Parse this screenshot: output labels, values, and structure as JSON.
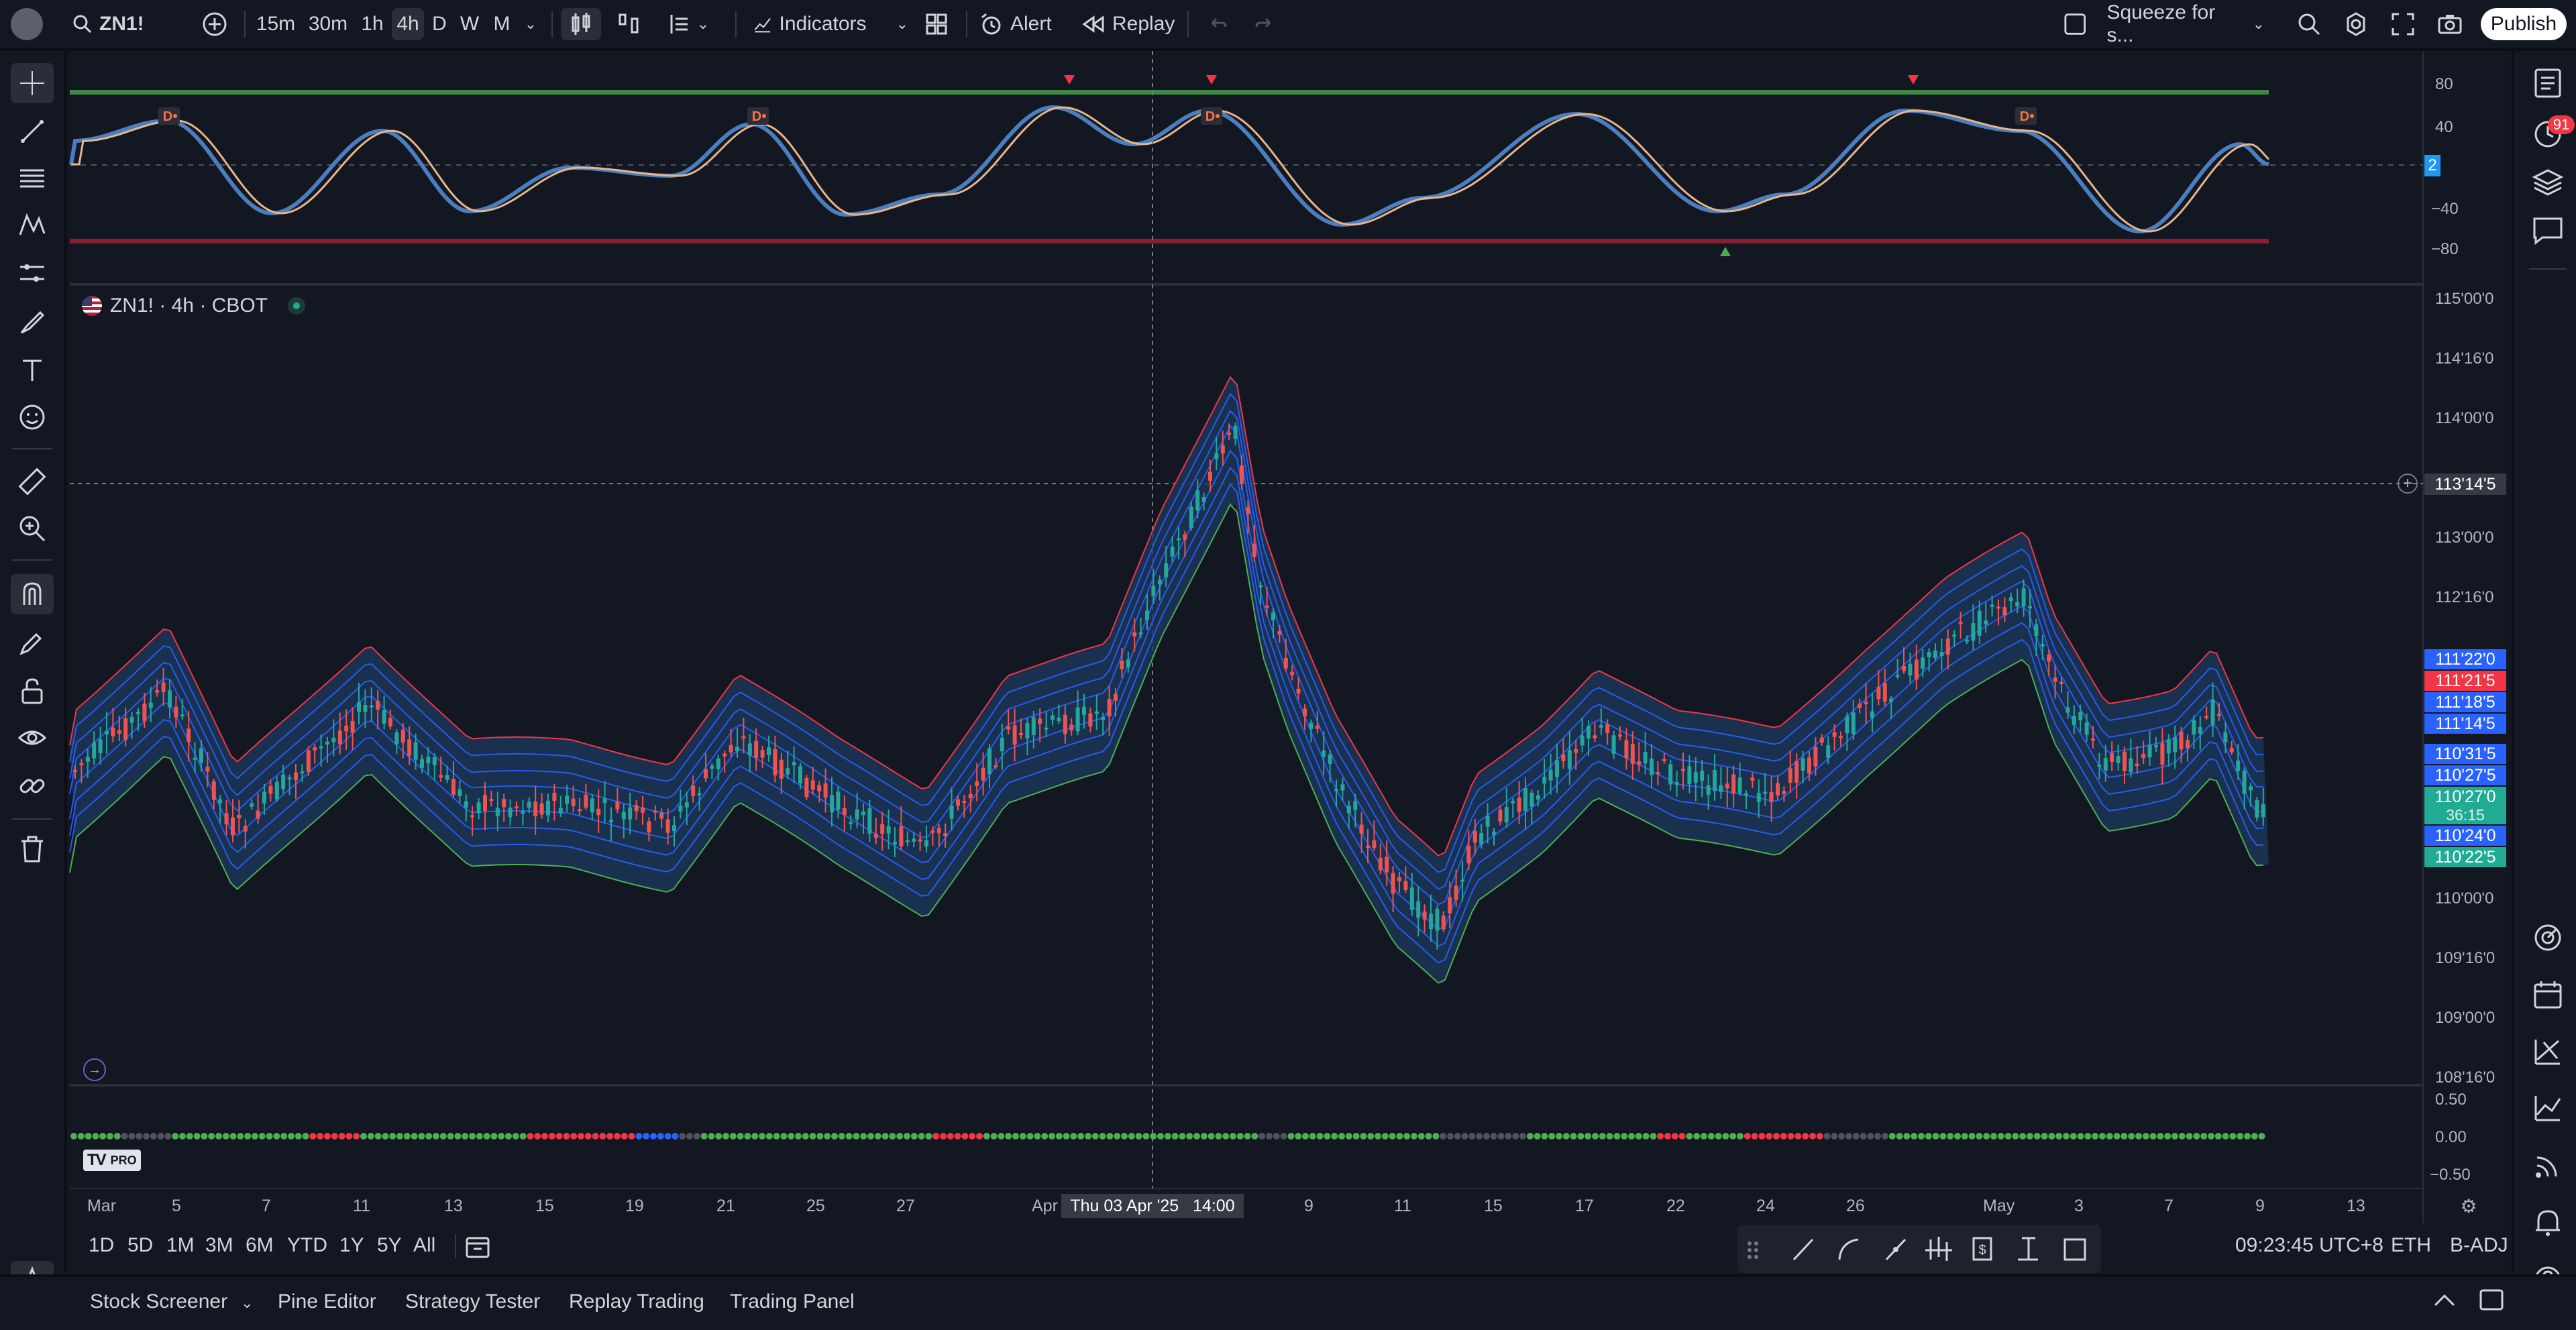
{
  "toolbar": {
    "symbol": "ZN1!",
    "intervals": [
      "15m",
      "30m",
      "1h",
      "4h",
      "D",
      "W",
      "M"
    ],
    "active_interval": "4h",
    "indicators_label": "Indicators",
    "alert_label": "Alert",
    "replay_label": "Replay",
    "layout_name": "Squeeze for s...",
    "publish_label": "Publish"
  },
  "oscillator": {
    "ticks": [
      "80",
      "40",
      "−40",
      "−80"
    ],
    "current_value": "2",
    "div_marker": "D"
  },
  "chart": {
    "legend": "ZN1! · 4h · CBOT",
    "price_ticks": [
      "115'00'0",
      "114'16'0",
      "114'00'0",
      "113'00'0",
      "112'16'0",
      "110'00'0",
      "109'16'0",
      "109'00'0",
      "108'16'0"
    ],
    "crosshair_price": "113'14'5",
    "price_tags": [
      {
        "text": "111'22'0",
        "color": "#2962ff"
      },
      {
        "text": "111'21'5",
        "color": "#f23645"
      },
      {
        "text": "111'18'5",
        "color": "#2962ff"
      },
      {
        "text": "111'14'5",
        "color": "#2962ff"
      },
      {
        "text": "110'31'5",
        "color": "#2962ff"
      },
      {
        "text": "110'27'5",
        "color": "#2962ff"
      },
      {
        "text": "110'27'0",
        "color": "#22ab94"
      },
      {
        "text": "36:15",
        "color": "#22ab94"
      },
      {
        "text": "110'24'0",
        "color": "#2962ff"
      },
      {
        "text": "110'22'5",
        "color": "#22ab94"
      }
    ]
  },
  "squeeze": {
    "ticks": [
      "0.50",
      "0.00",
      "−0.50"
    ]
  },
  "time_axis": {
    "labels": [
      "Mar",
      "5",
      "7",
      "11",
      "13",
      "15",
      "19",
      "21",
      "25",
      "27",
      "Apr",
      "9",
      "11",
      "15",
      "17",
      "22",
      "24",
      "26",
      "May",
      "3",
      "7",
      "9",
      "13"
    ],
    "crosshair_time": "Thu 03 Apr '25   14:00"
  },
  "footer": {
    "ranges": [
      "1D",
      "5D",
      "1M",
      "3M",
      "6M",
      "YTD",
      "1Y",
      "5Y",
      "All"
    ],
    "clock": "09:23:45 UTC+8",
    "session": "ETH",
    "adjust": "B-ADJ",
    "panels": [
      "Stock Screener",
      "Pine Editor",
      "Strategy Tester",
      "Replay Trading",
      "Trading Panel"
    ],
    "notification_count": "91",
    "logo_text": "PRO"
  },
  "colors": {
    "background": "#131722",
    "up": "#26a69a",
    "down": "#ef5350",
    "band": "#2962ff",
    "bb_upper": "#f23645",
    "bb_lower": "#4caf50"
  }
}
